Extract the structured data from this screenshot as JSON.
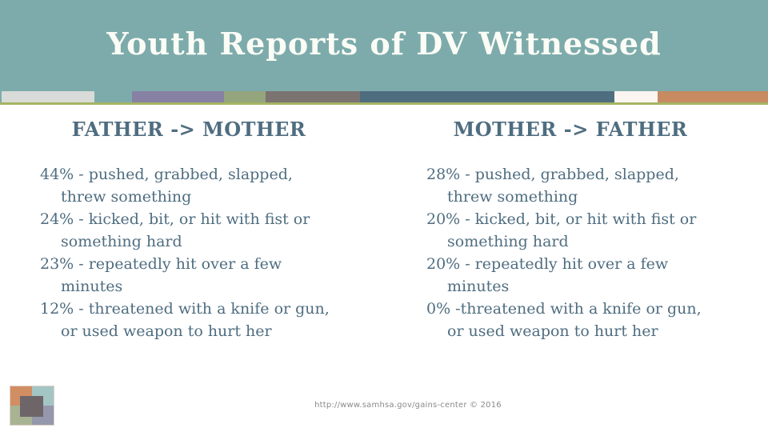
{
  "slide": {
    "title": "Youth Reports of DV Witnessed",
    "footer": "http://www.samhsa.gov/gains-center © 2016"
  },
  "columns": [
    {
      "heading": "FATHER -> MOTHER",
      "items": [
        "44% - pushed, grabbed, slapped, threw something",
        "24% - kicked, bit, or hit with fist or something hard",
        "23% - repeatedly hit over a few minutes",
        "12% - threatened with a knife or gun, or used weapon to hurt her"
      ]
    },
    {
      "heading": "MOTHER -> FATHER",
      "items": [
        "28% - pushed, grabbed, slapped, threw something",
        "20% - kicked, bit, or hit with fist or something hard",
        "20% - repeatedly hit over a few minutes",
        "0% -threatened with a knife or gun, or used weapon to hurt her"
      ]
    }
  ],
  "theme": {
    "header_bg": "#7dabab",
    "title_color": "#fbfcf6",
    "body_text_color": "#4f6d80",
    "footer_color": "#8a8a8a",
    "underline_color": "#a5b463",
    "strip_blocks": [
      {
        "name": "light-gray",
        "color": "#d9dbd8"
      },
      {
        "name": "teal-gap",
        "color": "#7dabab"
      },
      {
        "name": "purple",
        "color": "#8781a4"
      },
      {
        "name": "olive",
        "color": "#94a47c"
      },
      {
        "name": "brown-gray",
        "color": "#7b7370"
      },
      {
        "name": "dark-slate",
        "color": "#4e6d7e"
      },
      {
        "name": "cream",
        "color": "#fbf5f1"
      },
      {
        "name": "copper",
        "color": "#c78a61"
      }
    ],
    "logo_squares": {
      "top_left": "#d28e63",
      "top_right": "#a3c6c4",
      "bottom_left": "#a8b394",
      "bottom_right": "#9598ad",
      "center": "#6e6569"
    }
  }
}
